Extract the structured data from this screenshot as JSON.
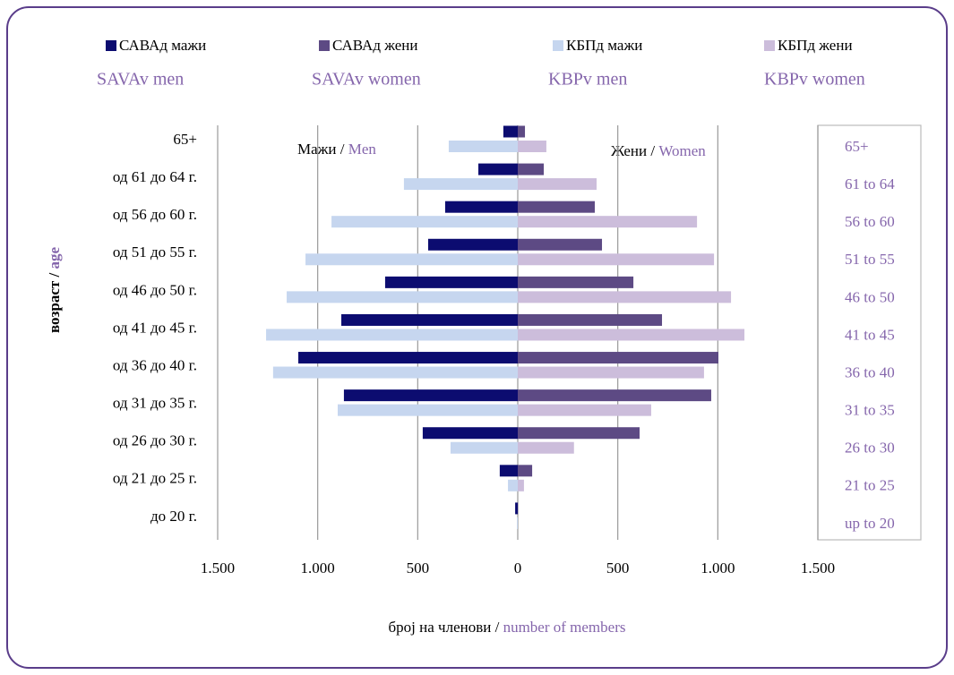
{
  "chart_data": {
    "type": "bar",
    "orientation": "horizontal",
    "stacked_mirror": true,
    "categories": [
      "65+",
      "од 61 до 64 г.",
      "од 56 до 60 г.",
      "од 51 до 55 г.",
      "од 46 до 50 г.",
      "од 41 до 45 г.",
      "од 36 до 40 г.",
      "од 31 до 35 г.",
      "од 26 до 30 г.",
      "од 21 до 25 г.",
      "до 20 г."
    ],
    "categories_en": [
      "65+",
      "61 to 64",
      "56 to 60",
      "51 to 55",
      "46 to 50",
      "41 to 45",
      "36 to 40",
      "31 to 35",
      "26 to 30",
      "21 to 25",
      "up to 20"
    ],
    "series": [
      {
        "name": "САВАд мажи",
        "name_en": "SAVAv men",
        "color": "#0c0c70",
        "values": [
          -72,
          -197,
          -363,
          -448,
          -663,
          -882,
          -1097,
          -869,
          -475,
          -90,
          -13
        ]
      },
      {
        "name": "САВАд жени",
        "name_en": "SAVAv women",
        "color": "#5d4a84",
        "values": [
          36,
          130,
          385,
          421,
          578,
          721,
          1003,
          967,
          609,
          72,
          1
        ]
      },
      {
        "name": "КБПд мажи",
        "name_en": "KBPv men",
        "color": "#c6d6ef",
        "values": [
          -345,
          -569,
          -931,
          -1061,
          -1155,
          -1258,
          -1223,
          -900,
          -336,
          -49,
          -4
        ]
      },
      {
        "name": "КБПд жени",
        "name_en": "KBPv women",
        "color": "#ccbddb",
        "values": [
          143,
          394,
          896,
          981,
          1066,
          1133,
          931,
          667,
          281,
          31,
          0
        ]
      }
    ],
    "xlim": [
      -1500,
      1500
    ],
    "xticks": [
      {
        "value": -1500,
        "label": "1.500"
      },
      {
        "value": -1000,
        "label": "1.000"
      },
      {
        "value": -500,
        "label": "500"
      },
      0,
      500,
      {
        "value": 1000,
        "label": "1.000"
      },
      {
        "value": 1500,
        "label": "1.500"
      }
    ],
    "grid": true,
    "legend": "top",
    "annotations": [
      {
        "text": "Мажи /",
        "text_en": "Men"
      },
      {
        "text": "Жени /",
        "text_en": "Women"
      }
    ],
    "xlabel": {
      "text": "број на членови /",
      "text_en": "number of members"
    },
    "ylabel": {
      "text": "возраст /",
      "text_en": "age"
    }
  }
}
